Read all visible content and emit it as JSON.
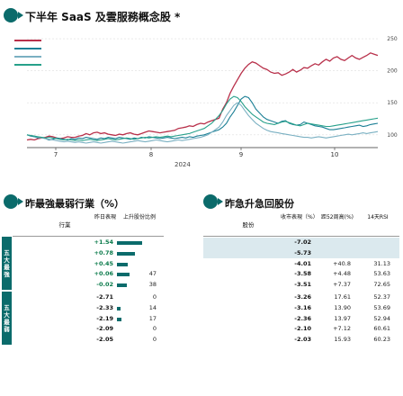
{
  "header": {
    "badge": "",
    "title": "下半年 SaaS 及雲服務概念股 *"
  },
  "chart": {
    "right_axis_label": "",
    "year_label": "2024",
    "footnote": "",
    "legend": [
      {
        "name": "",
        "color": "#b8304a"
      },
      {
        "name": "",
        "color": "#1b7f95"
      },
      {
        "name": "",
        "color": "#7ab0c2"
      },
      {
        "name": "",
        "color": "#26a08a"
      }
    ]
  },
  "chart_data": {
    "type": "line",
    "x_tick_labels": [
      "7",
      "8",
      "9",
      "10"
    ],
    "y_tick_labels": [
      "250",
      "200",
      "150",
      "100"
    ],
    "ylim": [
      80,
      260
    ],
    "series": [
      {
        "name": "",
        "color": "#b8304a",
        "values": [
          92,
          93,
          92,
          94,
          95,
          96,
          98,
          97,
          95,
          94,
          95,
          97,
          96,
          96,
          98,
          99,
          102,
          100,
          103,
          104,
          102,
          103,
          101,
          100,
          99,
          101,
          100,
          102,
          103,
          101,
          100,
          102,
          104,
          106,
          105,
          104,
          103,
          104,
          105,
          106,
          107,
          110,
          111,
          112,
          114,
          113,
          116,
          118,
          117,
          120,
          122,
          124,
          126,
          140,
          150,
          165,
          176,
          186,
          196,
          204,
          210,
          214,
          212,
          208,
          204,
          202,
          198,
          196,
          197,
          193,
          195,
          198,
          202,
          198,
          201,
          205,
          204,
          208,
          211,
          209,
          214,
          218,
          215,
          220,
          222,
          218,
          216,
          220,
          224,
          220,
          218,
          221,
          224,
          228,
          226,
          224
        ]
      },
      {
        "name": "",
        "color": "#1b7f95",
        "values": [
          100,
          98,
          97,
          95,
          96,
          94,
          92,
          93,
          95,
          94,
          93,
          92,
          94,
          93,
          95,
          94,
          96,
          95,
          94,
          93,
          95,
          94,
          96,
          95,
          94,
          96,
          95,
          94,
          93,
          95,
          94,
          96,
          95,
          97,
          96,
          95,
          94,
          95,
          96,
          95,
          94,
          95,
          96,
          95,
          97,
          96,
          98,
          99,
          100,
          102,
          104,
          106,
          108,
          112,
          118,
          128,
          136,
          146,
          156,
          160,
          158,
          150,
          140,
          134,
          128,
          124,
          122,
          120,
          118,
          121,
          122,
          118,
          116,
          115,
          116,
          120,
          118,
          116,
          114,
          113,
          112,
          110,
          108,
          108,
          109,
          110,
          111,
          112,
          113,
          114,
          115,
          113,
          114,
          116,
          117,
          118
        ]
      },
      {
        "name": "",
        "color": "#7ab0c2",
        "values": [
          100,
          99,
          98,
          96,
          95,
          94,
          93,
          92,
          91,
          90,
          89,
          90,
          89,
          88,
          89,
          88,
          87,
          88,
          89,
          88,
          87,
          88,
          89,
          90,
          89,
          88,
          87,
          88,
          89,
          90,
          91,
          90,
          89,
          90,
          91,
          92,
          91,
          90,
          89,
          90,
          91,
          92,
          91,
          92,
          93,
          94,
          95,
          96,
          98,
          100,
          104,
          108,
          112,
          120,
          130,
          138,
          146,
          150,
          146,
          138,
          130,
          124,
          118,
          114,
          110,
          107,
          105,
          104,
          103,
          102,
          101,
          100,
          99,
          98,
          97,
          96,
          96,
          95,
          96,
          97,
          96,
          95,
          96,
          97,
          98,
          99,
          100,
          101,
          100,
          101,
          102,
          103,
          102,
          103,
          104,
          105
        ]
      },
      {
        "name": "",
        "color": "#26a08a",
        "values": [
          100,
          99,
          98,
          97,
          96,
          95,
          96,
          95,
          94,
          93,
          92,
          93,
          92,
          91,
          92,
          91,
          92,
          93,
          92,
          91,
          92,
          93,
          94,
          93,
          92,
          93,
          94,
          95,
          94,
          93,
          94,
          95,
          96,
          95,
          96,
          97,
          96,
          97,
          98,
          97,
          98,
          99,
          100,
          101,
          102,
          104,
          106,
          108,
          110,
          114,
          118,
          124,
          130,
          138,
          148,
          156,
          160,
          158,
          152,
          144,
          138,
          132,
          128,
          124,
          120,
          118,
          117,
          116,
          118,
          120,
          121,
          119,
          117,
          115,
          114,
          116,
          118,
          117,
          116,
          115,
          114,
          113,
          113,
          114,
          115,
          116,
          117,
          118,
          119,
          120,
          121,
          122,
          123,
          124,
          125,
          126
        ]
      }
    ]
  },
  "left_table": {
    "badge": "",
    "title": "昨最強最弱行業（%）",
    "headers": [
      "行業",
      "昨日表現",
      "上升股份比例"
    ],
    "strong_label": "五大最強",
    "weak_label": "五大最弱",
    "rows": [
      {
        "name": "",
        "value": "+1.54",
        "ratio": "",
        "bar": 0.92
      },
      {
        "name": "",
        "value": "+0.78",
        "ratio": "",
        "bar": 0.67
      },
      {
        "name": "",
        "value": "+0.45",
        "ratio": "",
        "bar": 0.4
      },
      {
        "name": "",
        "value": "+0.06",
        "ratio": "47",
        "bar": 0.47
      },
      {
        "name": "",
        "value": "-0.02",
        "ratio": "38",
        "bar": 0.38
      },
      {
        "name": "",
        "value": "-2.71",
        "ratio": "0",
        "bar": 0
      },
      {
        "name": "",
        "value": "-2.33",
        "ratio": "14",
        "bar": 0.14
      },
      {
        "name": "",
        "value": "-2.19",
        "ratio": "17",
        "bar": 0.17
      },
      {
        "name": "",
        "value": "-2.09",
        "ratio": "0",
        "bar": 0
      },
      {
        "name": "",
        "value": "-2.05",
        "ratio": "0",
        "bar": 0
      }
    ]
  },
  "right_table": {
    "badge": "",
    "title": "昨急升急回股份",
    "headers": [
      "股份",
      "收市表現（%）",
      "距52周高(%)",
      "14天RSI"
    ],
    "rows": [
      {
        "name": "",
        "change": "-7.02",
        "from_high": "",
        "rsi": ""
      },
      {
        "name": "",
        "change": "-5.73",
        "from_high": "",
        "rsi": ""
      },
      {
        "name": "",
        "change": "-4.01",
        "from_high": "+40.8",
        "rsi": "31.13"
      },
      {
        "name": "",
        "change": "-3.58",
        "from_high": "+4.48",
        "rsi": "53.63"
      },
      {
        "name": "",
        "change": "-3.51",
        "from_high": "+7.37",
        "rsi": "72.65"
      },
      {
        "name": "",
        "change": "-3.26",
        "from_high": "17.61",
        "rsi": "52.37"
      },
      {
        "name": "",
        "change": "-3.16",
        "from_high": "13.90",
        "rsi": "53.69"
      },
      {
        "name": "",
        "change": "-2.36",
        "from_high": "13.97",
        "rsi": "52.94"
      },
      {
        "name": "",
        "change": "-2.10",
        "from_high": "+7.12",
        "rsi": "60.61"
      },
      {
        "name": "",
        "change": "-2.03",
        "from_high": "15.93",
        "rsi": "60.23"
      }
    ]
  }
}
